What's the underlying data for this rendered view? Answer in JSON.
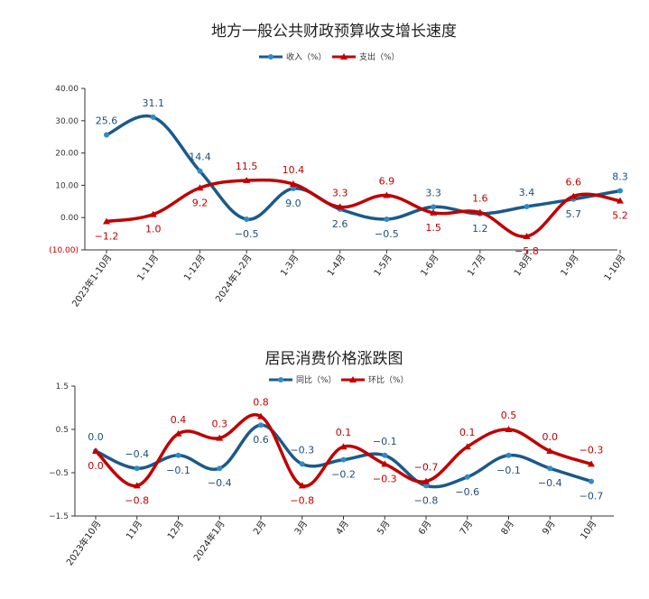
{
  "colors": {
    "series1": "#1a5a8a",
    "series2": "#c00000",
    "series1_marker": "#2e8bc9"
  },
  "chart_data": [
    {
      "type": "line",
      "title": "地方一般公共财政预算收支增长速度",
      "categories": [
        "2023年1-10月",
        "1-11月",
        "1-12月",
        "2024年1-2月",
        "1-3月",
        "1-4月",
        "1-5月",
        "1-6月",
        "1-7月",
        "1-8月",
        "1-9月",
        "1-10月"
      ],
      "series": [
        {
          "name": "收入（%）",
          "values": [
            25.6,
            31.1,
            14.4,
            -0.5,
            9.0,
            2.6,
            -0.5,
            3.3,
            1.2,
            3.4,
            5.7,
            8.3
          ],
          "labels": [
            "25.6",
            "31.1",
            "14.4",
            "−0.5",
            "9.0",
            "2.6",
            "−0.5",
            "3.3",
            "1.2",
            "3.4",
            "5.7",
            "8.3"
          ]
        },
        {
          "name": "支出（%）",
          "values": [
            -1.2,
            1.0,
            9.2,
            11.5,
            10.4,
            3.3,
            6.9,
            1.5,
            1.6,
            -5.8,
            6.6,
            5.2
          ],
          "labels": [
            "−1.2",
            "1.0",
            "9.2",
            "11.5",
            "10.4",
            "3.3",
            "6.9",
            "1.5",
            "1.6",
            "−5.8",
            "6.6",
            "5.2"
          ]
        }
      ],
      "ylim": [
        -10,
        40
      ],
      "yticks": [
        40,
        30,
        20,
        10,
        0,
        -10
      ],
      "ytick_labels": [
        "40.00",
        "30.00",
        "20.00",
        "10.00",
        "0.00",
        "(10.00)"
      ],
      "legend_position": "top-center",
      "grid": false
    },
    {
      "type": "line",
      "title": "居民消费价格涨跌图",
      "categories": [
        "2023年10月",
        "11月",
        "12月",
        "2024年1月",
        "2月",
        "3月",
        "4月",
        "5月",
        "6月",
        "7月",
        "8月",
        "9月",
        "10月"
      ],
      "series": [
        {
          "name": "同比（%）",
          "values": [
            0.0,
            -0.4,
            -0.1,
            -0.4,
            0.6,
            -0.3,
            -0.2,
            -0.1,
            -0.8,
            -0.6,
            -0.1,
            -0.4,
            -0.7
          ],
          "labels": [
            "0.0",
            "−0.4",
            "−0.1",
            "−0.4",
            "0.6",
            "−0.3",
            "−0.2",
            "−0.1",
            "−0.8",
            "−0.6",
            "−0.1",
            "−0.4",
            "−0.7"
          ]
        },
        {
          "name": "环比（%）",
          "values": [
            0.0,
            -0.8,
            0.4,
            0.3,
            0.8,
            -0.8,
            0.1,
            -0.3,
            -0.7,
            0.1,
            0.5,
            0.0,
            -0.3
          ],
          "labels": [
            "0.0",
            "−0.8",
            "0.4",
            "0.3",
            "0.8",
            "−0.8",
            "0.1",
            "−0.3",
            "−0.7",
            "0.1",
            "0.5",
            "0.0",
            "−0.3"
          ]
        }
      ],
      "ylim": [
        -1.5,
        1.5
      ],
      "yticks": [
        1.5,
        0.5,
        -0.5,
        -1.5
      ],
      "ytick_labels": [
        "1.5",
        "0.5",
        "−0.5",
        "−1.5"
      ],
      "legend_position": "top-center",
      "grid": false
    }
  ]
}
